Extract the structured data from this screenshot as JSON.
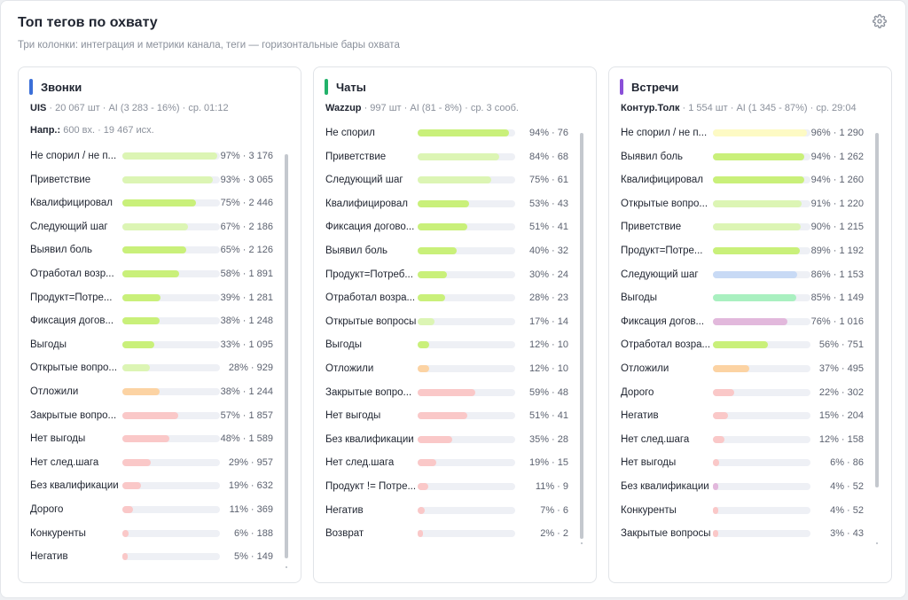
{
  "header": {
    "title": "Топ тегов по охвату",
    "subtitle": "Три колонки: интеграция и метрики канала, теги — горизонтальные бары охвата"
  },
  "icons": {
    "settings": "gear-icon"
  },
  "colors": {
    "calls_accent": "#3b6fd8",
    "chats_accent": "#22b26a",
    "meetings_accent": "#8a4fd8",
    "track": "#eef0f5"
  },
  "panels": [
    {
      "name": "Звонки",
      "accent": "#3b6fd8",
      "integration": "UIS",
      "meta": " · 20 067 шт · AI (3 283 - 16%) · ср. 01:12",
      "extra_label": "Напр.:",
      "extra": " 600 вх. · 19 467 исх.",
      "rows": [
        {
          "label": "Не спорил / не п...",
          "pct": 97,
          "value": "97% · 3 176",
          "color": "#dcf5b4"
        },
        {
          "label": "Приветствие",
          "pct": 93,
          "value": "93% · 3 065",
          "color": "#dcf5b4"
        },
        {
          "label": "Квалифицировал",
          "pct": 75,
          "value": "75% · 2 446",
          "color": "#c9f07a"
        },
        {
          "label": "Следующий шаг",
          "pct": 67,
          "value": "67% · 2 186",
          "color": "#dcf5b4"
        },
        {
          "label": "Выявил боль",
          "pct": 65,
          "value": "65% · 2 126",
          "color": "#c9f07a"
        },
        {
          "label": "Отработал возр...",
          "pct": 58,
          "value": "58% · 1 891",
          "color": "#c9f07a"
        },
        {
          "label": "Продукт=Потре...",
          "pct": 39,
          "value": "39% · 1 281",
          "color": "#c9f07a"
        },
        {
          "label": "Фиксация догов...",
          "pct": 38,
          "value": "38% · 1 248",
          "color": "#c9f07a"
        },
        {
          "label": "Выгоды",
          "pct": 33,
          "value": "33% · 1 095",
          "color": "#c9f07a"
        },
        {
          "label": "Открытые вопро...",
          "pct": 28,
          "value": "28% · 929",
          "color": "#dcf5b4"
        },
        {
          "label": "Отложили",
          "pct": 38,
          "value": "38% · 1 244",
          "color": "#fcd3a3"
        },
        {
          "label": "Закрытые вопро...",
          "pct": 57,
          "value": "57% · 1 857",
          "color": "#fac8c8"
        },
        {
          "label": "Нет выгоды",
          "pct": 48,
          "value": "48% · 1 589",
          "color": "#fac8c8"
        },
        {
          "label": "Нет след.шага",
          "pct": 29,
          "value": "29% · 957",
          "color": "#fac8c8"
        },
        {
          "label": "Без квалификации",
          "pct": 19,
          "value": "19% · 632",
          "color": "#fac8c8"
        },
        {
          "label": "Дорого",
          "pct": 11,
          "value": "11% · 369",
          "color": "#fac8c8"
        },
        {
          "label": "Конкуренты",
          "pct": 6,
          "value": "6% · 188",
          "color": "#fac8c8"
        },
        {
          "label": "Негатив",
          "pct": 5,
          "value": "5% · 149",
          "color": "#fac8c8"
        }
      ]
    },
    {
      "name": "Чаты",
      "accent": "#22b26a",
      "integration": "Wazzup",
      "meta": " · 997 шт · AI (81 - 8%) · ср. 3 сооб.",
      "extra_label": "",
      "extra": "",
      "rows": [
        {
          "label": "Не спорил",
          "pct": 94,
          "value": "94% · 76",
          "color": "#c9f07a"
        },
        {
          "label": "Приветствие",
          "pct": 84,
          "value": "84% · 68",
          "color": "#dcf5b4"
        },
        {
          "label": "Следующий шаг",
          "pct": 75,
          "value": "75% · 61",
          "color": "#dcf5b4"
        },
        {
          "label": "Квалифицировал",
          "pct": 53,
          "value": "53% · 43",
          "color": "#c9f07a"
        },
        {
          "label": "Фиксация догово...",
          "pct": 51,
          "value": "51% · 41",
          "color": "#c9f07a"
        },
        {
          "label": "Выявил боль",
          "pct": 40,
          "value": "40% · 32",
          "color": "#c9f07a"
        },
        {
          "label": "Продукт=Потреб...",
          "pct": 30,
          "value": "30% · 24",
          "color": "#c9f07a"
        },
        {
          "label": "Отработал возра...",
          "pct": 28,
          "value": "28% · 23",
          "color": "#c9f07a"
        },
        {
          "label": "Открытые вопросы",
          "pct": 17,
          "value": "17% · 14",
          "color": "#dcf5b4"
        },
        {
          "label": "Выгоды",
          "pct": 12,
          "value": "12% · 10",
          "color": "#c9f07a"
        },
        {
          "label": "Отложили",
          "pct": 12,
          "value": "12% · 10",
          "color": "#fcd3a3"
        },
        {
          "label": "Закрытые вопро...",
          "pct": 59,
          "value": "59% · 48",
          "color": "#fac8c8"
        },
        {
          "label": "Нет выгоды",
          "pct": 51,
          "value": "51% · 41",
          "color": "#fac8c8"
        },
        {
          "label": "Без квалификации",
          "pct": 35,
          "value": "35% · 28",
          "color": "#fac8c8"
        },
        {
          "label": "Нет след.шага",
          "pct": 19,
          "value": "19% · 15",
          "color": "#fac8c8"
        },
        {
          "label": "Продукт != Потре...",
          "pct": 11,
          "value": "11% · 9",
          "color": "#fac8c8"
        },
        {
          "label": "Негатив",
          "pct": 7,
          "value": "7% · 6",
          "color": "#fac8c8"
        },
        {
          "label": "Возврат",
          "pct": 2,
          "value": "2% · 2",
          "color": "#fac8c8"
        }
      ]
    },
    {
      "name": "Встречи",
      "accent": "#8a4fd8",
      "integration": "Контур.Толк",
      "meta": " · 1 554 шт · AI (1 345 - 87%) · ср. 29:04",
      "extra_label": "",
      "extra": "",
      "rows": [
        {
          "label": "Не спорил / не п...",
          "pct": 96,
          "value": "96% · 1 290",
          "color": "#fdfac4"
        },
        {
          "label": "Выявил боль",
          "pct": 94,
          "value": "94% · 1 262",
          "color": "#c9f07a"
        },
        {
          "label": "Квалифицировал",
          "pct": 94,
          "value": "94% · 1 260",
          "color": "#c9f07a"
        },
        {
          "label": "Открытые вопро...",
          "pct": 91,
          "value": "91% · 1 220",
          "color": "#dcf5b4"
        },
        {
          "label": "Приветствие",
          "pct": 90,
          "value": "90% · 1 215",
          "color": "#dcf5b4"
        },
        {
          "label": "Продукт=Потре...",
          "pct": 89,
          "value": "89% · 1 192",
          "color": "#c9f07a"
        },
        {
          "label": "Следующий шаг",
          "pct": 86,
          "value": "86% · 1 153",
          "color": "#c8daf5"
        },
        {
          "label": "Выгоды",
          "pct": 85,
          "value": "85% · 1 149",
          "color": "#a9f0c0"
        },
        {
          "label": "Фиксация догов...",
          "pct": 76,
          "value": "76% · 1 016",
          "color": "#e2b8dc"
        },
        {
          "label": "Отработал возра...",
          "pct": 56,
          "value": "56% · 751",
          "color": "#c9f07a"
        },
        {
          "label": "Отложили",
          "pct": 37,
          "value": "37% · 495",
          "color": "#fcd3a3"
        },
        {
          "label": "Дорого",
          "pct": 22,
          "value": "22% · 302",
          "color": "#fac8c8"
        },
        {
          "label": "Негатив",
          "pct": 15,
          "value": "15% · 204",
          "color": "#fac8c8"
        },
        {
          "label": "Нет след.шага",
          "pct": 12,
          "value": "12% · 158",
          "color": "#fac8c8"
        },
        {
          "label": "Нет выгоды",
          "pct": 6,
          "value": "6% · 86",
          "color": "#fac8c8"
        },
        {
          "label": "Без квалификации",
          "pct": 4,
          "value": "4% · 52",
          "color": "#e2b8dc"
        },
        {
          "label": "Конкуренты",
          "pct": 4,
          "value": "4% · 52",
          "color": "#fac8c8"
        },
        {
          "label": "Закрытые вопросы",
          "pct": 3,
          "value": "3% · 43",
          "color": "#fac8c8"
        }
      ]
    }
  ]
}
